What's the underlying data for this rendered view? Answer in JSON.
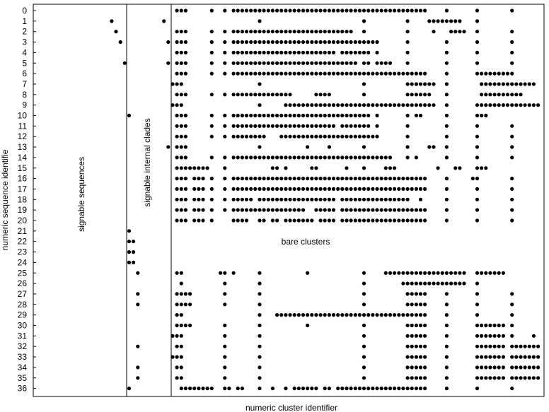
{
  "chart_data": {
    "type": "scatter",
    "title": "",
    "xlabel": "numeric cluster identifier",
    "ylabel": "numeric sequence identifie",
    "y_ticks": [
      "0",
      "1",
      "2",
      "3",
      "4",
      "5",
      "6",
      "7",
      "8",
      "9",
      "10",
      "11",
      "12",
      "13",
      "14",
      "15",
      "16",
      "17",
      "18",
      "19",
      "20",
      "21",
      "22",
      "23",
      "24",
      "25",
      "26",
      "27",
      "28",
      "29",
      "30",
      "31",
      "32",
      "33",
      "34",
      "35",
      "36"
    ],
    "x_ticks_shown": false,
    "dividers_x": [
      22,
      33
    ],
    "regions": [
      {
        "label": "signable sequences",
        "orientation": "vertical"
      },
      {
        "label": "signable internal clades",
        "orientation": "vertical"
      },
      {
        "label": "bare clusters",
        "orientation": "horizontal"
      }
    ],
    "grid": false,
    "legend": "none",
    "marker_color": "#000000",
    "points_encoding": "each row lists the x (cluster identifier) values that have a dot for sequence y = row index",
    "points_by_sequence": [
      [
        34,
        35,
        36,
        42,
        45,
        47,
        48,
        49,
        50,
        51,
        52,
        53,
        54,
        55,
        56,
        57,
        58,
        59,
        60,
        61,
        62,
        63,
        64,
        65,
        66,
        67,
        68,
        69,
        70,
        71,
        72,
        73,
        74,
        75,
        76,
        77,
        78,
        79,
        80,
        81,
        82,
        83,
        84,
        85,
        86,
        87,
        88,
        89,
        90,
        91,
        96,
        103,
        111
      ],
      [
        19,
        31,
        53,
        77,
        87,
        92,
        93,
        94,
        95,
        96,
        97,
        98,
        99,
        103
      ],
      [
        20,
        34,
        35,
        36,
        42,
        45,
        47,
        48,
        49,
        50,
        51,
        52,
        53,
        54,
        55,
        56,
        57,
        58,
        59,
        60,
        61,
        62,
        63,
        64,
        65,
        66,
        67,
        68,
        69,
        70,
        71,
        72,
        73,
        74,
        77,
        87,
        93,
        97,
        98,
        99,
        100,
        103,
        111
      ],
      [
        21,
        32,
        34,
        35,
        36,
        42,
        45,
        47,
        48,
        49,
        50,
        51,
        52,
        53,
        54,
        55,
        56,
        57,
        58,
        59,
        60,
        61,
        62,
        63,
        64,
        65,
        66,
        67,
        68,
        69,
        70,
        71,
        72,
        73,
        74,
        75,
        76,
        77,
        78,
        79,
        80,
        87,
        96,
        103,
        111
      ],
      [
        34,
        35,
        36,
        42,
        45,
        47,
        48,
        49,
        50,
        51,
        52,
        53,
        54,
        55,
        56,
        57,
        58,
        59,
        60,
        61,
        62,
        63,
        64,
        65,
        66,
        67,
        68,
        69,
        70,
        72,
        73,
        74,
        75,
        76,
        77,
        78,
        80,
        87,
        96,
        103,
        111
      ],
      [
        22,
        32,
        34,
        35,
        36,
        42,
        45,
        47,
        48,
        49,
        50,
        51,
        52,
        53,
        54,
        55,
        56,
        57,
        58,
        59,
        60,
        61,
        62,
        63,
        64,
        65,
        66,
        67,
        68,
        69,
        70,
        71,
        72,
        73,
        74,
        75,
        77,
        78,
        80,
        81,
        82,
        83,
        87,
        96,
        103,
        111
      ],
      [
        34,
        35,
        36,
        42,
        45,
        47,
        48,
        49,
        50,
        51,
        52,
        53,
        54,
        55,
        56,
        57,
        58,
        59,
        60,
        61,
        62,
        63,
        64,
        65,
        66,
        67,
        68,
        69,
        70,
        71,
        72,
        73,
        74,
        75,
        76,
        77,
        78,
        79,
        80,
        81,
        82,
        83,
        84,
        85,
        86,
        87,
        88,
        89,
        90,
        91,
        96,
        103,
        104,
        105,
        106,
        107,
        108,
        109,
        110,
        111
      ],
      [
        33,
        34,
        35,
        53,
        77,
        87,
        88,
        89,
        90,
        91,
        92,
        93,
        96,
        104,
        105,
        106,
        107,
        108,
        109,
        110,
        111,
        112,
        113,
        114,
        115,
        116
      ],
      [
        34,
        35,
        36,
        42,
        45,
        47,
        48,
        49,
        50,
        51,
        52,
        53,
        54,
        55,
        56,
        57,
        58,
        59,
        60,
        66,
        67,
        68,
        69,
        77,
        87,
        88,
        89,
        90,
        91,
        92,
        96,
        104,
        105,
        106,
        107,
        108,
        109,
        110,
        111,
        112,
        113
      ],
      [
        33,
        34,
        35,
        53,
        59,
        60,
        61,
        62,
        63,
        64,
        65,
        66,
        67,
        68,
        69,
        70,
        71,
        72,
        73,
        74,
        75,
        76,
        77,
        78,
        79,
        80,
        81,
        82,
        83,
        84,
        85,
        86,
        87,
        88,
        89,
        90,
        91,
        92,
        93,
        96,
        103,
        104,
        105,
        106,
        107,
        108,
        109,
        110,
        111,
        112,
        113,
        114,
        115,
        116,
        117
      ],
      [
        23,
        34,
        35,
        36,
        42,
        45,
        47,
        48,
        49,
        50,
        51,
        52,
        53,
        54,
        55,
        56,
        57,
        58,
        59,
        60,
        61,
        62,
        63,
        64,
        65,
        66,
        67,
        68,
        69,
        70,
        71,
        72,
        73,
        74,
        75,
        76,
        77,
        78,
        80,
        87,
        89,
        90,
        96,
        103,
        104,
        105
      ],
      [
        34,
        35,
        36,
        42,
        45,
        47,
        48,
        49,
        50,
        51,
        52,
        53,
        54,
        55,
        56,
        57,
        58,
        59,
        60,
        61,
        62,
        63,
        64,
        65,
        66,
        67,
        68,
        69,
        70,
        72,
        73,
        74,
        75,
        76,
        77,
        78,
        80,
        87,
        96,
        103,
        111
      ],
      [
        34,
        35,
        36,
        42,
        45,
        47,
        48,
        49,
        50,
        51,
        52,
        53,
        54,
        58,
        59,
        60,
        61,
        62,
        63,
        64,
        65,
        66,
        67,
        68,
        69,
        70,
        71,
        72,
        73,
        74,
        75,
        76,
        77,
        78,
        79,
        80,
        87,
        96,
        103,
        111
      ],
      [
        32,
        34,
        35,
        36,
        53,
        64,
        69,
        77,
        87,
        92,
        93,
        96,
        103,
        111
      ],
      [
        34,
        35,
        36,
        42,
        45,
        47,
        48,
        49,
        50,
        51,
        52,
        53,
        54,
        55,
        56,
        57,
        58,
        59,
        60,
        61,
        62,
        63,
        64,
        65,
        66,
        67,
        68,
        69,
        70,
        71,
        72,
        73,
        74,
        75,
        76,
        77,
        78,
        79,
        80,
        81,
        82,
        83,
        87,
        89,
        96,
        103,
        111
      ],
      [
        34,
        35,
        36,
        37,
        38,
        39,
        40,
        41,
        45,
        56,
        57,
        59,
        65,
        66,
        73,
        77,
        82,
        83,
        84,
        94,
        98,
        99,
        103,
        104,
        105
      ],
      [
        34,
        35,
        36,
        38,
        39,
        40,
        42,
        45,
        47,
        48,
        49,
        50,
        51,
        52,
        53,
        54,
        55,
        56,
        57,
        58,
        59,
        60,
        61,
        62,
        63,
        64,
        65,
        66,
        67,
        68,
        69,
        70,
        71,
        72,
        73,
        74,
        75,
        76,
        77,
        78,
        79,
        80,
        81,
        82,
        83,
        84,
        85,
        86,
        87,
        88,
        89,
        90,
        91,
        96,
        102,
        103,
        111
      ],
      [
        34,
        35,
        36,
        38,
        39,
        40,
        42,
        45,
        47,
        48,
        49,
        50,
        51,
        52,
        53,
        54,
        55,
        56,
        57,
        58,
        59,
        60,
        61,
        62,
        63,
        64,
        65,
        66,
        67,
        68,
        69,
        70,
        71,
        72,
        73,
        74,
        75,
        76,
        77,
        78,
        79,
        80,
        81,
        82,
        83,
        84,
        85,
        86,
        87,
        88,
        89,
        90,
        91,
        96,
        103,
        111
      ],
      [
        34,
        35,
        36,
        38,
        39,
        40,
        42,
        45,
        47,
        48,
        49,
        50,
        51,
        53,
        54,
        55,
        56,
        57,
        58,
        59,
        60,
        61,
        62,
        63,
        64,
        65,
        66,
        67,
        68,
        69,
        70,
        72,
        73,
        74,
        75,
        76,
        77,
        78,
        79,
        80,
        81,
        82,
        83,
        84,
        85,
        86,
        87,
        90,
        96,
        103,
        111
      ],
      [
        34,
        35,
        36,
        38,
        39,
        40,
        42,
        45,
        47,
        48,
        49,
        50,
        51,
        52,
        53,
        54,
        55,
        56,
        57,
        58,
        59,
        60,
        61,
        62,
        63,
        66,
        67,
        68,
        69,
        70,
        72,
        73,
        74,
        75,
        76,
        77,
        78,
        79,
        80,
        81,
        82,
        83,
        84,
        85,
        86,
        87,
        88,
        89,
        90,
        91,
        96,
        103,
        111
      ],
      [
        34,
        35,
        36,
        38,
        39,
        40,
        42,
        47,
        48,
        49,
        50,
        53,
        54,
        56,
        57,
        59,
        60,
        61,
        62,
        63,
        64,
        65,
        67,
        68,
        69,
        70,
        72,
        73,
        74,
        75,
        76,
        77,
        78,
        79,
        80,
        81,
        82,
        83,
        84,
        85,
        86,
        87,
        88,
        89,
        90,
        91,
        96,
        103,
        111
      ],
      [
        23
      ],
      [
        23,
        24
      ],
      [
        23,
        24
      ],
      [
        23,
        24
      ],
      [
        25,
        34,
        35,
        44,
        45,
        47,
        53,
        64,
        77,
        82,
        83,
        84,
        85,
        86,
        87,
        88,
        89,
        90,
        91,
        92,
        93,
        94,
        95,
        96,
        97,
        98,
        99,
        100,
        103,
        104,
        105,
        106,
        107,
        108,
        109
      ],
      [
        35,
        45,
        53,
        77,
        86,
        87,
        88,
        89,
        90,
        91,
        92,
        93,
        94,
        95,
        96,
        97,
        98,
        99,
        100,
        103
      ],
      [
        25,
        34,
        35,
        36,
        37,
        45,
        53,
        77,
        87,
        88,
        89,
        90,
        91,
        96,
        103,
        111
      ],
      [
        25,
        34,
        35,
        36,
        37,
        45,
        53,
        77,
        87,
        88,
        89,
        90,
        91,
        96,
        103,
        111
      ],
      [
        34,
        35,
        53,
        57,
        58,
        59,
        60,
        61,
        62,
        63,
        64,
        65,
        66,
        67,
        68,
        69,
        70,
        71,
        72,
        73,
        74,
        75,
        76,
        77,
        78,
        79,
        80,
        81,
        82,
        83,
        84,
        85,
        86,
        87,
        88,
        89,
        90,
        91,
        96,
        103,
        111
      ],
      [
        34,
        35,
        36,
        37,
        45,
        53,
        64,
        77,
        87,
        88,
        89,
        90,
        91,
        96,
        103,
        104,
        105,
        106,
        107,
        108,
        109,
        111
      ],
      [
        33,
        34,
        35,
        45,
        53,
        77,
        87,
        88,
        89,
        90,
        91,
        96,
        103,
        104,
        105,
        106,
        107,
        108,
        109,
        111,
        116
      ],
      [
        25,
        34,
        35,
        45,
        53,
        77,
        87,
        88,
        89,
        90,
        91,
        96,
        103,
        104,
        105,
        106,
        107,
        108,
        109,
        111,
        112,
        113,
        114,
        115,
        116,
        117
      ],
      [
        33,
        34,
        35,
        45,
        53,
        77,
        87,
        88,
        89,
        90,
        91,
        96,
        103,
        104,
        105,
        106,
        107,
        108,
        109,
        111,
        112,
        113,
        114,
        115,
        116,
        117
      ],
      [
        25,
        34,
        35,
        45,
        53,
        77,
        87,
        88,
        89,
        90,
        91,
        96,
        103,
        104,
        105,
        106,
        107,
        108,
        109,
        111,
        112,
        113,
        114,
        115,
        116,
        117
      ],
      [
        25,
        34,
        35,
        45,
        53,
        77,
        87,
        88,
        89,
        90,
        91,
        96,
        103,
        104,
        105,
        106,
        107,
        108,
        109,
        111,
        112,
        113,
        114,
        115,
        116,
        117
      ],
      [
        23,
        35,
        36,
        37,
        38,
        39,
        40,
        41,
        42,
        45,
        46,
        48,
        49,
        53,
        56,
        59,
        61,
        62,
        63,
        64,
        65,
        66,
        68,
        69,
        71,
        72,
        73,
        74,
        75,
        76,
        77,
        78,
        79,
        80,
        81,
        82,
        83,
        84,
        85,
        86,
        87,
        88,
        89,
        90,
        91,
        96,
        103,
        111
      ]
    ]
  }
}
